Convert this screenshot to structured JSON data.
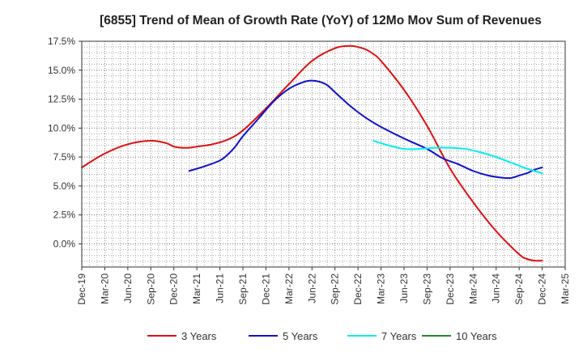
{
  "chart_data": {
    "type": "line",
    "title": "[6855]  Trend of Mean of Growth Rate (YoY) of 12Mo Mov Sum of Revenues",
    "xlabel": "",
    "ylabel": "",
    "ylim": [
      -2.0,
      17.5
    ],
    "yticks": [
      17.5,
      15.0,
      12.5,
      10.0,
      7.5,
      5.0,
      2.5,
      0.0
    ],
    "ytick_labels": [
      "17.5%",
      "15.0%",
      "12.5%",
      "10.0%",
      "7.5%",
      "5.0%",
      "2.5%",
      "0.0%"
    ],
    "xticks": [
      "Dec-19",
      "Mar-20",
      "Jun-20",
      "Sep-20",
      "Dec-20",
      "Mar-21",
      "Jun-21",
      "Sep-21",
      "Dec-21",
      "Mar-22",
      "Jun-22",
      "Sep-22",
      "Dec-22",
      "Mar-23",
      "Jun-23",
      "Sep-23",
      "Dec-23",
      "Mar-24",
      "Jun-24",
      "Sep-24",
      "Dec-24",
      "Mar-25"
    ],
    "x_index_range": [
      0,
      63
    ],
    "grid": true,
    "legend_position": "bottom",
    "series": [
      {
        "name": "3 Years",
        "color": "#dd1111",
        "x": [
          0,
          3,
          6,
          9,
          11,
          12,
          13,
          14,
          15,
          17,
          19,
          21,
          24,
          27,
          30,
          33,
          35,
          36,
          37,
          38,
          39,
          42,
          45,
          48,
          51,
          54,
          57,
          58,
          59,
          60
        ],
        "values": [
          6.6,
          7.8,
          8.6,
          8.9,
          8.7,
          8.4,
          8.3,
          8.3,
          8.4,
          8.6,
          9.0,
          9.8,
          11.7,
          13.8,
          15.8,
          16.9,
          17.1,
          17.0,
          16.8,
          16.4,
          15.8,
          13.3,
          10.2,
          6.5,
          3.6,
          1.1,
          -0.9,
          -1.3,
          -1.45,
          -1.45
        ]
      },
      {
        "name": "5 Years",
        "color": "#1111cc",
        "x": [
          14,
          16,
          18,
          19,
          20,
          21,
          23,
          25,
          27,
          29,
          30,
          31,
          32,
          33,
          35,
          37,
          39,
          42,
          45,
          47,
          49,
          51,
          53,
          55,
          56,
          57,
          58,
          59,
          60
        ],
        "values": [
          6.3,
          6.7,
          7.2,
          7.7,
          8.4,
          9.3,
          10.8,
          12.3,
          13.4,
          14.0,
          14.1,
          14.0,
          13.7,
          13.1,
          11.9,
          10.9,
          10.1,
          9.1,
          8.2,
          7.4,
          6.9,
          6.3,
          5.9,
          5.7,
          5.7,
          5.9,
          6.1,
          6.4,
          6.6
        ]
      },
      {
        "name": "7 Years",
        "color": "#00eeee",
        "x": [
          38,
          40,
          42,
          44,
          46,
          48,
          50,
          52,
          54,
          56,
          58,
          60
        ],
        "values": [
          8.9,
          8.5,
          8.2,
          8.2,
          8.3,
          8.3,
          8.2,
          7.9,
          7.5,
          7.0,
          6.5,
          6.1
        ]
      },
      {
        "name": "10 Years",
        "color": "#228822",
        "x": [],
        "values": []
      }
    ]
  }
}
